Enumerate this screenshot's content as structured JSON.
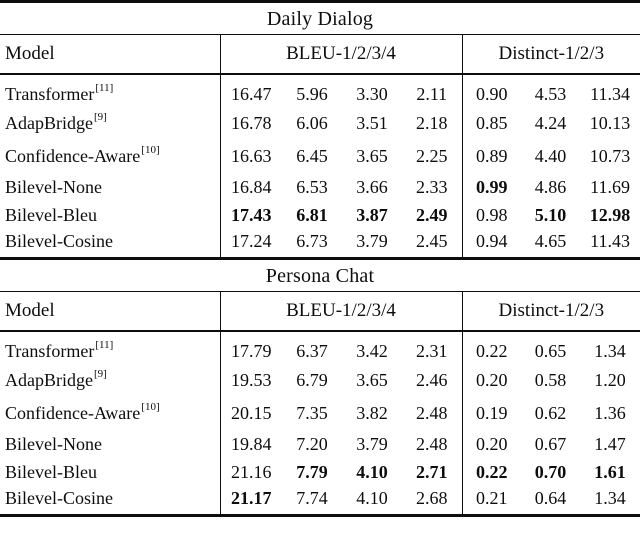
{
  "tables": [
    {
      "title": "Daily Dialog",
      "header": {
        "model": "Model",
        "bleu": "BLEU-1/2/3/4",
        "distinct": "Distinct-1/2/3"
      },
      "rows": [
        {
          "model": "Transformer",
          "ref": "[11]",
          "bleu": [
            "16.47",
            "5.96",
            "3.30",
            "2.11"
          ],
          "bleu_bold": [
            false,
            false,
            false,
            false
          ],
          "distinct": [
            "0.90",
            "4.53",
            "11.34"
          ],
          "distinct_bold": [
            false,
            false,
            false
          ]
        },
        {
          "model": "AdapBridge",
          "ref": "[9]",
          "bleu": [
            "16.78",
            "6.06",
            "3.51",
            "2.18"
          ],
          "bleu_bold": [
            false,
            false,
            false,
            false
          ],
          "distinct": [
            "0.85",
            "4.24",
            "10.13"
          ],
          "distinct_bold": [
            false,
            false,
            false
          ]
        },
        {
          "model": "Confidence-Aware",
          "ref": "[10]",
          "bleu": [
            "16.63",
            "6.45",
            "3.65",
            "2.25"
          ],
          "bleu_bold": [
            false,
            false,
            false,
            false
          ],
          "distinct": [
            "0.89",
            "4.40",
            "10.73"
          ],
          "distinct_bold": [
            false,
            false,
            false
          ]
        },
        {
          "model": "Bilevel-None",
          "ref": "",
          "bleu": [
            "16.84",
            "6.53",
            "3.66",
            "2.33"
          ],
          "bleu_bold": [
            false,
            false,
            false,
            false
          ],
          "distinct": [
            "0.99",
            "4.86",
            "11.69"
          ],
          "distinct_bold": [
            true,
            false,
            false
          ]
        },
        {
          "model": "Bilevel-Bleu",
          "ref": "",
          "bleu": [
            "17.43",
            "6.81",
            "3.87",
            "2.49"
          ],
          "bleu_bold": [
            true,
            true,
            true,
            true
          ],
          "distinct": [
            "0.98",
            "5.10",
            "12.98"
          ],
          "distinct_bold": [
            false,
            true,
            true
          ]
        },
        {
          "model": "Bilevel-Cosine",
          "ref": "",
          "bleu": [
            "17.24",
            "6.73",
            "3.79",
            "2.45"
          ],
          "bleu_bold": [
            false,
            false,
            false,
            false
          ],
          "distinct": [
            "0.94",
            "4.65",
            "11.43"
          ],
          "distinct_bold": [
            false,
            false,
            false
          ]
        }
      ]
    },
    {
      "title": "Persona Chat",
      "header": {
        "model": "Model",
        "bleu": "BLEU-1/2/3/4",
        "distinct": "Distinct-1/2/3"
      },
      "rows": [
        {
          "model": "Transformer",
          "ref": "[11]",
          "bleu": [
            "17.79",
            "6.37",
            "3.42",
            "2.31"
          ],
          "bleu_bold": [
            false,
            false,
            false,
            false
          ],
          "distinct": [
            "0.22",
            "0.65",
            "1.34"
          ],
          "distinct_bold": [
            false,
            false,
            false
          ]
        },
        {
          "model": "AdapBridge",
          "ref": "[9]",
          "bleu": [
            "19.53",
            "6.79",
            "3.65",
            "2.46"
          ],
          "bleu_bold": [
            false,
            false,
            false,
            false
          ],
          "distinct": [
            "0.20",
            "0.58",
            "1.20"
          ],
          "distinct_bold": [
            false,
            false,
            false
          ]
        },
        {
          "model": "Confidence-Aware",
          "ref": "[10]",
          "bleu": [
            "20.15",
            "7.35",
            "3.82",
            "2.48"
          ],
          "bleu_bold": [
            false,
            false,
            false,
            false
          ],
          "distinct": [
            "0.19",
            "0.62",
            "1.36"
          ],
          "distinct_bold": [
            false,
            false,
            false
          ]
        },
        {
          "model": "Bilevel-None",
          "ref": "",
          "bleu": [
            "19.84",
            "7.20",
            "3.79",
            "2.48"
          ],
          "bleu_bold": [
            false,
            false,
            false,
            false
          ],
          "distinct": [
            "0.20",
            "0.67",
            "1.47"
          ],
          "distinct_bold": [
            false,
            false,
            false
          ]
        },
        {
          "model": "Bilevel-Bleu",
          "ref": "",
          "bleu": [
            "21.16",
            "7.79",
            "4.10",
            "2.71"
          ],
          "bleu_bold": [
            false,
            true,
            true,
            true
          ],
          "distinct": [
            "0.22",
            "0.70",
            "1.61"
          ],
          "distinct_bold": [
            true,
            true,
            true
          ]
        },
        {
          "model": "Bilevel-Cosine",
          "ref": "",
          "bleu": [
            "21.17",
            "7.74",
            "4.10",
            "2.68"
          ],
          "bleu_bold": [
            true,
            false,
            false,
            false
          ],
          "distinct": [
            "0.21",
            "0.64",
            "1.34"
          ],
          "distinct_bold": [
            false,
            false,
            false
          ]
        }
      ]
    }
  ]
}
